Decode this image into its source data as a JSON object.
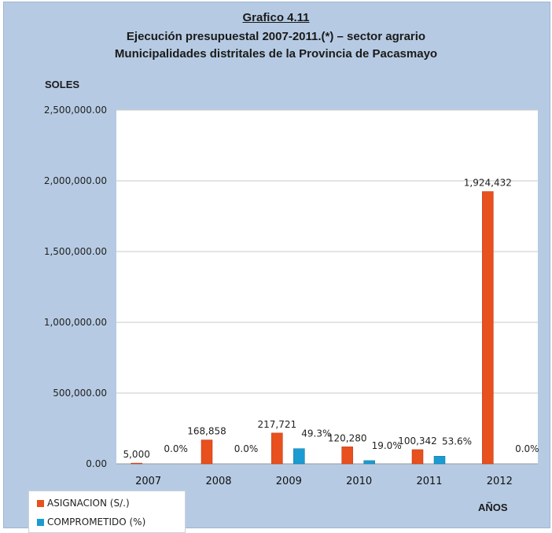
{
  "chart_data": {
    "type": "bar",
    "title": "Grafico 4.11",
    "subtitle_lines": [
      "Ejecución presupuestal 2007-2011.(*) – sector agrario",
      "Municipalidades distritales de la Provincia de Pacasmayo"
    ],
    "ylabel": "SOLES",
    "xlabel": "AÑOS",
    "categories": [
      "2007",
      "2008",
      "2009",
      "2010",
      "2011",
      "2012"
    ],
    "ylim": [
      0,
      2500000
    ],
    "yticks": [
      0,
      500000,
      1000000,
      1500000,
      2000000,
      2500000
    ],
    "ytick_labels": [
      "0.00",
      "500,000.00",
      "1,000,000.00",
      "1,500,000.00",
      "2,000,000.00",
      "2,500,000.00"
    ],
    "grid": true,
    "legend_position": "bottom-left",
    "series": [
      {
        "name": "ASIGNACION (S/.)",
        "values": [
          5000,
          168858,
          217721,
          120280,
          100342,
          1924432
        ],
        "labels": [
          "5,000",
          "168,858",
          "217,721",
          "120,280",
          "100,342",
          "1,924,432"
        ],
        "color": "#e8501e"
      },
      {
        "name": "COMPROMETIDO (%)",
        "values": [
          0.0,
          0.0,
          49.3,
          19.0,
          53.6,
          0.0
        ],
        "labels": [
          "0.0%",
          "0.0%",
          "49.3%",
          "19.0%",
          "53.6%",
          "0.0%"
        ],
        "plotted_values": [
          0,
          0,
          107335,
          22853,
          53783,
          0
        ],
        "color": "#1a9bd1"
      }
    ]
  }
}
